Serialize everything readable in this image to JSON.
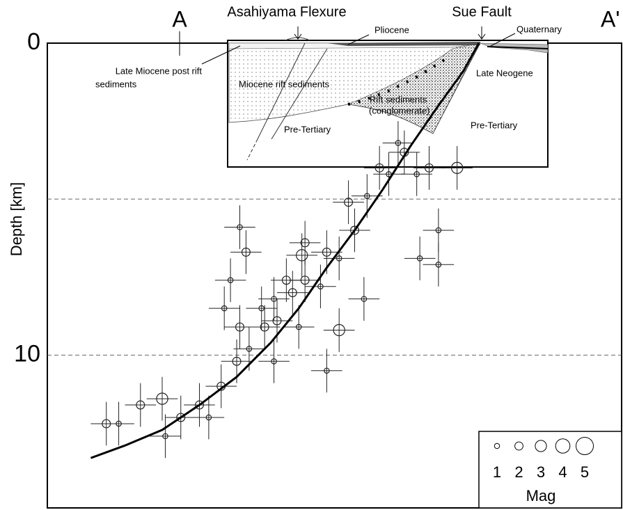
{
  "chart_data": {
    "type": "scatter",
    "y_label": "Depth [km]",
    "xlim": [
      0,
      18.5
    ],
    "ylim": [
      0,
      14.9
    ],
    "yticks": [
      0,
      10
    ],
    "dashed_lines": [
      5,
      10
    ],
    "section_ends": [
      "A",
      "A'"
    ],
    "annotations": {
      "asahiyama": "Asahiyama Flexure",
      "sue": "Sue Fault",
      "pliocene": "Pliocene",
      "quaternary": "Quaternary",
      "late_miocene": [
        "Late Miocene post rift",
        "sediments"
      ],
      "miocene_rift": "Miocene rift sediments",
      "rift_conglomerate": [
        "Rift sediments",
        "(conglomerate)"
      ],
      "late_neogene": "Late Neogene",
      "pre_tertiary_left": "Pre-Tertiary",
      "pre_tertiary_right": "Pre-Tertiary"
    },
    "fault": {
      "color": "#000000",
      "x": [
        1.4,
        2.5,
        3.7,
        4.9,
        6.1,
        7.2,
        8.1,
        9.0,
        9.9,
        10.8,
        11.7,
        12.6,
        13.4,
        13.9
      ],
      "y": [
        13.3,
        12.9,
        12.4,
        11.6,
        10.7,
        9.6,
        8.5,
        7.2,
        6.0,
        4.7,
        3.3,
        2.0,
        0.9,
        0.0
      ]
    },
    "events": {
      "color": "#222222",
      "xerr": 0.5,
      "yerr": 0.7,
      "x": [
        1.9,
        2.3,
        3.0,
        3.7,
        3.8,
        4.3,
        4.9,
        5.2,
        5.6,
        6.1,
        6.5,
        7.0,
        7.3,
        7.4,
        7.9,
        8.1,
        8.3,
        8.8,
        9.0,
        9.4,
        9.9,
        10.3,
        10.7,
        11.0,
        11.5,
        11.9,
        12.3,
        12.6,
        12.0,
        12.6,
        13.2,
        9.0,
        6.2,
        5.9,
        5.7,
        6.4,
        8.3,
        9.4,
        10.2,
        9.7,
        7.7,
        6.9,
        6.2,
        7.3,
        8.2,
        11.3
      ],
      "y": [
        12.2,
        12.2,
        11.6,
        11.4,
        12.6,
        12.0,
        11.6,
        12.0,
        11.0,
        10.2,
        9.8,
        9.1,
        8.2,
        8.9,
        8.0,
        9.1,
        7.6,
        7.8,
        6.7,
        6.9,
        6.0,
        4.9,
        4.0,
        4.2,
        3.5,
        4.2,
        4.0,
        6.0,
        6.9,
        7.1,
        4.0,
        10.5,
        5.9,
        7.6,
        8.5,
        6.7,
        6.4,
        9.2,
        8.2,
        5.1,
        7.6,
        8.5,
        9.1,
        10.2,
        6.8,
        3.2
      ],
      "mag": [
        2,
        1,
        2,
        3,
        1,
        2,
        2,
        1,
        2,
        2,
        1,
        2,
        1,
        2,
        2,
        1,
        2,
        1,
        2,
        1,
        2,
        1,
        2,
        1,
        2,
        1,
        2,
        1,
        1,
        1,
        3,
        1,
        1,
        1,
        1,
        2,
        2,
        3,
        1,
        2,
        2,
        1,
        2,
        1,
        3,
        1
      ]
    },
    "mag_legend": {
      "title": "Mag",
      "values": [
        1,
        2,
        3,
        4,
        5
      ]
    }
  }
}
